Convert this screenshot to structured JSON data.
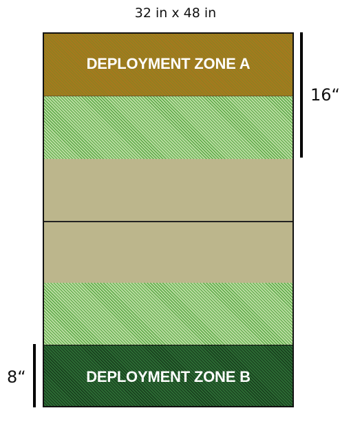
{
  "title": "32 in x 48 in",
  "zones": {
    "a_label": "DEPLOYMENT ZONE A",
    "b_label": "DEPLOYMENT ZONE B"
  },
  "dimensions": {
    "right_label": "16“",
    "left_label": "8“"
  },
  "colors": {
    "zone_a": "#a8771d",
    "forest_green": "#5aa845",
    "open_ground": "#bcb68c",
    "zone_b": "#2c6b34"
  }
}
